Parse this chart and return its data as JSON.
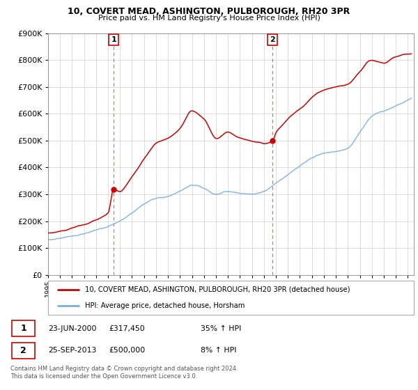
{
  "title": "10, COVERT MEAD, ASHINGTON, PULBOROUGH, RH20 3PR",
  "subtitle": "Price paid vs. HM Land Registry's House Price Index (HPI)",
  "ylim": [
    0,
    900000
  ],
  "yticks": [
    0,
    100000,
    200000,
    300000,
    400000,
    500000,
    600000,
    700000,
    800000,
    900000
  ],
  "xlim_start": 1995.0,
  "xlim_end": 2025.5,
  "sale1_date": 2000.47,
  "sale1_price": 317450,
  "sale2_date": 2013.73,
  "sale2_price": 500000,
  "red_color": "#cc0000",
  "blue_color": "#7aadda",
  "legend_label1": "10, COVERT MEAD, ASHINGTON, PULBOROUGH, RH20 3PR (detached house)",
  "legend_label2": "HPI: Average price, detached house, Horsham",
  "table_row1": [
    "1",
    "23-JUN-2000",
    "£317,450",
    "35% ↑ HPI"
  ],
  "table_row2": [
    "2",
    "25-SEP-2013",
    "£500,000",
    "8% ↑ HPI"
  ],
  "footnote": "Contains HM Land Registry data © Crown copyright and database right 2024.\nThis data is licensed under the Open Government Licence v3.0.",
  "hpi_points": [
    [
      1995.0,
      130000
    ],
    [
      1996.0,
      137000
    ],
    [
      1997.0,
      148000
    ],
    [
      1998.0,
      158000
    ],
    [
      1999.0,
      170000
    ],
    [
      2000.0,
      185000
    ],
    [
      2001.0,
      205000
    ],
    [
      2002.0,
      235000
    ],
    [
      2003.0,
      268000
    ],
    [
      2004.0,
      290000
    ],
    [
      2005.0,
      298000
    ],
    [
      2006.0,
      315000
    ],
    [
      2007.0,
      335000
    ],
    [
      2008.0,
      320000
    ],
    [
      2009.0,
      295000
    ],
    [
      2010.0,
      305000
    ],
    [
      2011.0,
      300000
    ],
    [
      2012.0,
      298000
    ],
    [
      2013.0,
      310000
    ],
    [
      2014.0,
      340000
    ],
    [
      2015.0,
      375000
    ],
    [
      2016.0,
      405000
    ],
    [
      2017.0,
      435000
    ],
    [
      2018.0,
      450000
    ],
    [
      2019.0,
      458000
    ],
    [
      2020.0,
      470000
    ],
    [
      2021.0,
      530000
    ],
    [
      2022.0,
      590000
    ],
    [
      2023.0,
      610000
    ],
    [
      2024.0,
      630000
    ],
    [
      2025.0,
      650000
    ]
  ],
  "red_points": [
    [
      1995.0,
      155000
    ],
    [
      1996.0,
      163000
    ],
    [
      1997.0,
      175000
    ],
    [
      1998.0,
      188000
    ],
    [
      1999.0,
      204000
    ],
    [
      2000.0,
      230000
    ],
    [
      2000.47,
      317450
    ],
    [
      2001.0,
      310000
    ],
    [
      2002.0,
      370000
    ],
    [
      2003.0,
      430000
    ],
    [
      2004.0,
      490000
    ],
    [
      2005.0,
      510000
    ],
    [
      2006.0,
      545000
    ],
    [
      2007.0,
      610000
    ],
    [
      2008.0,
      580000
    ],
    [
      2009.0,
      510000
    ],
    [
      2010.0,
      530000
    ],
    [
      2011.0,
      510000
    ],
    [
      2012.0,
      500000
    ],
    [
      2013.0,
      490000
    ],
    [
      2013.73,
      500000
    ],
    [
      2014.0,
      530000
    ],
    [
      2015.0,
      580000
    ],
    [
      2016.0,
      620000
    ],
    [
      2017.0,
      660000
    ],
    [
      2018.0,
      690000
    ],
    [
      2019.0,
      700000
    ],
    [
      2020.0,
      710000
    ],
    [
      2021.0,
      760000
    ],
    [
      2022.0,
      800000
    ],
    [
      2023.0,
      790000
    ],
    [
      2024.0,
      810000
    ],
    [
      2025.0,
      820000
    ]
  ]
}
